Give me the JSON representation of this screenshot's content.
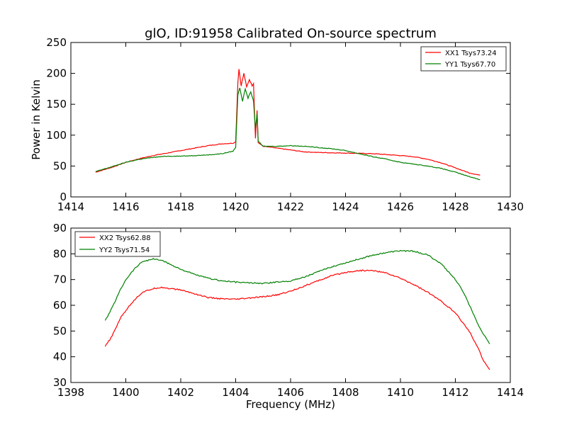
{
  "title": "glO, ID:91958 Calibrated On-source spectrum",
  "chart_data": [
    {
      "type": "line",
      "title": "glO, ID:91958 Calibrated On-source spectrum",
      "xlabel": "",
      "ylabel": "Power in Kelvin",
      "xlim": [
        1414,
        1430
      ],
      "ylim": [
        0,
        250
      ],
      "xticks": [
        "1414",
        "1416",
        "1418",
        "1420",
        "1422",
        "1424",
        "1426",
        "1428",
        "1430"
      ],
      "yticks": [
        "0",
        "50",
        "100",
        "150",
        "200",
        "250"
      ],
      "grid": false,
      "legend_position": "top-right",
      "series": [
        {
          "name": "XX1 Tsys73.24",
          "color": "#ff0000",
          "points": [
            [
              1414.9,
              40
            ],
            [
              1415.2,
              44
            ],
            [
              1415.5,
              48
            ],
            [
              1416.0,
              56
            ],
            [
              1416.5,
              62
            ],
            [
              1417.0,
              67
            ],
            [
              1417.5,
              71
            ],
            [
              1418.0,
              75
            ],
            [
              1418.5,
              79
            ],
            [
              1419.0,
              83
            ],
            [
              1419.5,
              86
            ],
            [
              1419.9,
              87
            ],
            [
              1420.0,
              89
            ],
            [
              1420.08,
              185
            ],
            [
              1420.12,
              207
            ],
            [
              1420.2,
              180
            ],
            [
              1420.3,
              200
            ],
            [
              1420.4,
              178
            ],
            [
              1420.5,
              190
            ],
            [
              1420.6,
              180
            ],
            [
              1420.65,
              184
            ],
            [
              1420.72,
              95
            ],
            [
              1420.78,
              140
            ],
            [
              1420.82,
              88
            ],
            [
              1421.0,
              82
            ],
            [
              1421.5,
              79
            ],
            [
              1422.0,
              76
            ],
            [
              1422.5,
              73
            ],
            [
              1423.0,
              72
            ],
            [
              1424.0,
              71
            ],
            [
              1425.0,
              70
            ],
            [
              1426.0,
              67
            ],
            [
              1426.5,
              65
            ],
            [
              1427.0,
              61
            ],
            [
              1427.5,
              55
            ],
            [
              1428.0,
              47
            ],
            [
              1428.5,
              39
            ],
            [
              1428.9,
              35
            ]
          ]
        },
        {
          "name": "YY1 Tsys67.70",
          "color": "#008000",
          "points": [
            [
              1414.9,
              41
            ],
            [
              1415.2,
              45
            ],
            [
              1415.5,
              49
            ],
            [
              1416.0,
              56
            ],
            [
              1416.5,
              61
            ],
            [
              1417.0,
              64
            ],
            [
              1417.5,
              66
            ],
            [
              1418.0,
              66
            ],
            [
              1418.5,
              67
            ],
            [
              1419.0,
              68
            ],
            [
              1419.5,
              70
            ],
            [
              1419.9,
              74
            ],
            [
              1420.0,
              80
            ],
            [
              1420.08,
              165
            ],
            [
              1420.15,
              177
            ],
            [
              1420.25,
              155
            ],
            [
              1420.35,
              175
            ],
            [
              1420.45,
              160
            ],
            [
              1420.55,
              170
            ],
            [
              1420.65,
              155
            ],
            [
              1420.72,
              110
            ],
            [
              1420.78,
              135
            ],
            [
              1420.82,
              90
            ],
            [
              1421.0,
              82
            ],
            [
              1421.5,
              82
            ],
            [
              1422.0,
              83
            ],
            [
              1422.5,
              82
            ],
            [
              1423.0,
              80
            ],
            [
              1423.5,
              78
            ],
            [
              1424.0,
              75
            ],
            [
              1424.5,
              70
            ],
            [
              1425.0,
              65
            ],
            [
              1425.5,
              61
            ],
            [
              1426.0,
              56
            ],
            [
              1426.5,
              53
            ],
            [
              1427.0,
              50
            ],
            [
              1427.5,
              46
            ],
            [
              1428.0,
              40
            ],
            [
              1428.5,
              33
            ],
            [
              1428.9,
              28
            ]
          ]
        }
      ]
    },
    {
      "type": "line",
      "title": "",
      "xlabel": "Frequency (MHz)",
      "ylabel": "",
      "xlim": [
        1398,
        1414
      ],
      "ylim": [
        30,
        90
      ],
      "xticks": [
        "1398",
        "1400",
        "1402",
        "1404",
        "1406",
        "1408",
        "1410",
        "1412",
        "1414"
      ],
      "yticks": [
        "30",
        "40",
        "50",
        "60",
        "70",
        "80",
        "90"
      ],
      "grid": false,
      "legend_position": "top-left",
      "series": [
        {
          "name": "XX2 Tsys62.88",
          "color": "#ff0000",
          "points": [
            [
              1399.25,
              44
            ],
            [
              1399.5,
              48
            ],
            [
              1399.8,
              55
            ],
            [
              1400.0,
              58
            ],
            [
              1400.3,
              62
            ],
            [
              1400.6,
              65
            ],
            [
              1401.0,
              66.5
            ],
            [
              1401.3,
              67
            ],
            [
              1401.6,
              66.5
            ],
            [
              1402.0,
              66
            ],
            [
              1402.5,
              64.5
            ],
            [
              1403.0,
              63
            ],
            [
              1403.5,
              62.5
            ],
            [
              1404.0,
              62.3
            ],
            [
              1404.5,
              62.8
            ],
            [
              1405.0,
              63.3
            ],
            [
              1405.5,
              64
            ],
            [
              1406.0,
              65.5
            ],
            [
              1406.5,
              67.5
            ],
            [
              1407.0,
              69.5
            ],
            [
              1407.5,
              71.5
            ],
            [
              1408.0,
              72.8
            ],
            [
              1408.5,
              73.5
            ],
            [
              1409.0,
              73.5
            ],
            [
              1409.5,
              72.5
            ],
            [
              1410.0,
              70.5
            ],
            [
              1410.5,
              68
            ],
            [
              1411.0,
              65
            ],
            [
              1411.5,
              61.5
            ],
            [
              1412.0,
              57
            ],
            [
              1412.5,
              50
            ],
            [
              1412.8,
              44
            ],
            [
              1413.0,
              39
            ],
            [
              1413.25,
              35
            ]
          ]
        },
        {
          "name": "YY2 Tsys71.54",
          "color": "#008000",
          "points": [
            [
              1399.25,
              54
            ],
            [
              1399.5,
              59
            ],
            [
              1399.8,
              66
            ],
            [
              1400.0,
              70
            ],
            [
              1400.3,
              74
            ],
            [
              1400.6,
              77
            ],
            [
              1401.0,
              78
            ],
            [
              1401.3,
              77.5
            ],
            [
              1401.6,
              76
            ],
            [
              1402.0,
              74
            ],
            [
              1402.5,
              72
            ],
            [
              1403.0,
              70.5
            ],
            [
              1403.5,
              69.5
            ],
            [
              1404.0,
              69
            ],
            [
              1404.5,
              68.7
            ],
            [
              1405.0,
              68.5
            ],
            [
              1405.5,
              69
            ],
            [
              1406.0,
              69.5
            ],
            [
              1406.5,
              71
            ],
            [
              1407.0,
              73
            ],
            [
              1407.5,
              75
            ],
            [
              1408.0,
              76.5
            ],
            [
              1408.5,
              78
            ],
            [
              1409.0,
              79.5
            ],
            [
              1409.5,
              80.5
            ],
            [
              1410.0,
              81.2
            ],
            [
              1410.5,
              81
            ],
            [
              1411.0,
              79.5
            ],
            [
              1411.5,
              76
            ],
            [
              1412.0,
              70
            ],
            [
              1412.3,
              65
            ],
            [
              1412.6,
              58
            ],
            [
              1412.9,
              51
            ],
            [
              1413.25,
              45
            ]
          ]
        }
      ]
    }
  ]
}
